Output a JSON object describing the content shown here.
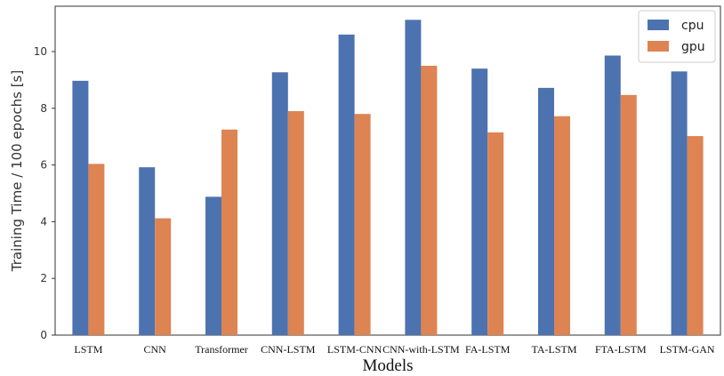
{
  "chart_data": {
    "type": "bar",
    "xlabel": "Models",
    "ylabel": "Training Time / 100 epochs [s]",
    "categories": [
      "LSTM",
      "CNN",
      "Transformer",
      "CNN-LSTM",
      "LSTM-CNN",
      "CNN-with-LSTM",
      "FA-LSTM",
      "TA-LSTM",
      "FTA-LSTM",
      "LSTM-GAN"
    ],
    "series": [
      {
        "name": "cpu",
        "color": "#4c72b0",
        "values": [
          8.97,
          5.92,
          4.88,
          9.27,
          10.6,
          11.12,
          9.4,
          8.72,
          9.86,
          9.3
        ]
      },
      {
        "name": "gpu",
        "color": "#dd8452",
        "values": [
          6.04,
          4.12,
          7.25,
          7.9,
          7.8,
          9.5,
          7.15,
          7.72,
          8.47,
          7.02
        ]
      }
    ],
    "ylim": [
      0,
      11.6
    ],
    "yticks": [
      0,
      2,
      4,
      6,
      8,
      10
    ],
    "grid": false,
    "legend": "top-right"
  }
}
